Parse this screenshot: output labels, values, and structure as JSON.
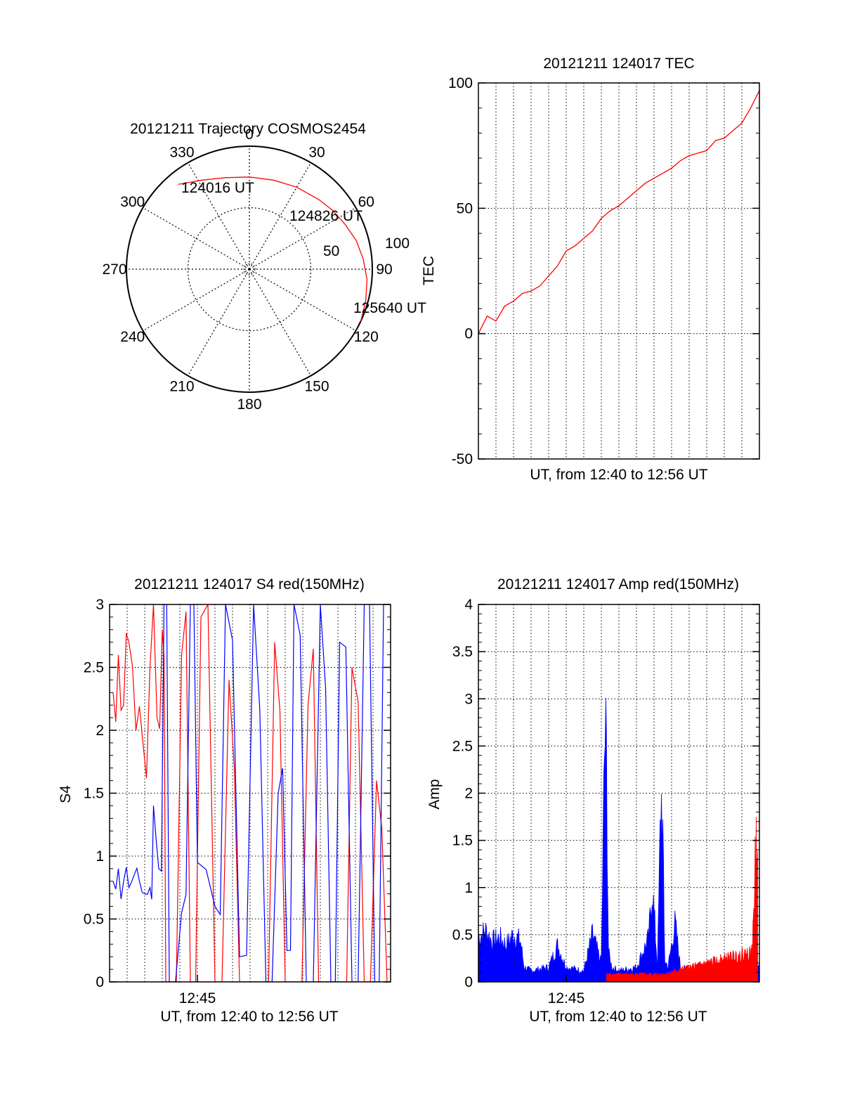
{
  "colors": {
    "red": "#ff0000",
    "blue": "#0000ff",
    "axis": "#000000",
    "grid": "#000000"
  },
  "polar": {
    "title": "20121211 Trajectory COSMOS2454",
    "azimuth_labels": [
      "0",
      "30",
      "60",
      "90",
      "120",
      "150",
      "180",
      "210",
      "240",
      "270",
      "300",
      "330"
    ],
    "elevation_labels": [
      "50",
      "100"
    ],
    "start_label": "124016 UT",
    "mid_label": "124826 UT",
    "end_label": "125640 UT"
  },
  "chart_data": [
    {
      "id": "trajectory",
      "type": "scatter",
      "title": "20121211 Trajectory COSMOS2454",
      "projection": "polar",
      "azimuth_ticks": [
        0,
        30,
        60,
        90,
        120,
        150,
        180,
        210,
        240,
        270,
        300,
        330
      ],
      "radius_ticks": [
        50,
        100
      ],
      "rlim": [
        0,
        100
      ],
      "grid": true,
      "series": [
        {
          "color": "#ff0000",
          "points": [
            [
              320,
              90
            ],
            [
              332,
              82
            ],
            [
              345,
              77
            ],
            [
              0,
              75
            ],
            [
              15,
              75
            ],
            [
              30,
              77
            ],
            [
              45,
              80
            ],
            [
              55,
              83
            ],
            [
              65,
              86
            ],
            [
              75,
              90
            ],
            [
              85,
              93
            ],
            [
              95,
              96
            ],
            [
              105,
              98
            ],
            [
              115,
              100
            ]
          ]
        }
      ]
    },
    {
      "id": "tec",
      "type": "line",
      "title": "20121211 124017 TEC",
      "xlabel": "UT, from 12:40 to 12:56 UT",
      "ylabel": "TEC",
      "xlim": [
        0,
        16
      ],
      "ylim": [
        -50,
        100
      ],
      "yticks": [
        -50,
        0,
        50,
        100
      ],
      "xtick_labels": [],
      "x_gridlines": 16,
      "grid": true,
      "series": [
        {
          "color": "#ff0000",
          "x": [
            0,
            0.5,
            1,
            1.5,
            2,
            2.5,
            3,
            3.5,
            4,
            4.5,
            5,
            5.5,
            6,
            6.5,
            7,
            7.5,
            8,
            8.5,
            9,
            9.5,
            10,
            10.5,
            11,
            11.5,
            12,
            12.5,
            13,
            13.5,
            14,
            14.5,
            15,
            15.5,
            16
          ],
          "y": [
            0,
            7,
            5,
            11,
            13,
            16,
            17,
            19,
            23,
            27,
            33,
            35,
            38,
            41,
            46,
            49,
            51,
            54,
            57,
            60,
            62,
            64,
            66,
            69,
            71,
            72,
            73,
            77,
            78,
            81,
            84,
            90,
            97
          ]
        }
      ]
    },
    {
      "id": "s4",
      "type": "line",
      "title": "20121211 124017 S4 red(150MHz)",
      "xlabel": "UT, from 12:40 to 12:56 UT",
      "ylabel": "S4",
      "xlim": [
        0,
        16
      ],
      "ylim": [
        0,
        3
      ],
      "yticks": [
        0,
        0.5,
        1,
        1.5,
        2,
        2.5,
        3
      ],
      "ytick_labels": [
        "0",
        "0.5",
        "1",
        "1.5",
        "2",
        "2.5",
        "3"
      ],
      "xtick_labels": [
        {
          "x": 5,
          "label": "12:45"
        }
      ],
      "x_gridlines": 16,
      "grid": true,
      "series": [
        {
          "color": "#ff0000",
          "x": [
            0.2,
            0.5,
            0.8,
            1.1,
            1.5,
            1.9,
            2.3,
            2.7,
            3.0,
            3.2,
            3.5,
            4.1,
            4.6,
            5.2,
            6.0,
            6.8,
            7.4,
            8.1,
            8.7,
            9.4,
            10.0,
            10.6,
            11.3,
            11.9,
            12.5,
            13.2,
            13.8,
            14.5,
            15.2,
            15.8
          ],
          "y": [
            2.3,
            2.6,
            2.2,
            2.7,
            2.0,
            1.9,
            2.5,
            2.1,
            2.8,
            0.0,
            0.0,
            2.6,
            0.0,
            2.9,
            0.0,
            2.4,
            0.0,
            0.0,
            0.0,
            2.7,
            0.0,
            0.0,
            2.2,
            0.0,
            0.0,
            0.0,
            2.5,
            0.0,
            1.6,
            0.0
          ]
        },
        {
          "color": "#0000ff",
          "x": [
            0.2,
            0.5,
            0.8,
            1.1,
            1.4,
            1.7,
            2.0,
            2.3,
            2.5,
            2.8,
            3.1,
            3.4,
            4.1,
            4.6,
            5.0,
            6.0,
            6.6,
            7.4,
            8.2,
            8.9,
            9.6,
            10.1,
            10.5,
            11.2,
            12.0,
            12.6,
            13.1,
            13.8,
            14.5,
            15.1,
            15.6
          ],
          "y": [
            0.8,
            0.9,
            0.8,
            0.75,
            0.85,
            0.8,
            0.7,
            0.75,
            1.4,
            0.9,
            3.0,
            0.0,
            0.55,
            3.0,
            0.95,
            0.6,
            3.0,
            0.2,
            3.0,
            0.0,
            1.5,
            0.25,
            3.0,
            0.0,
            3.0,
            0.0,
            2.7,
            0.0,
            3.0,
            0.0,
            3.0
          ]
        }
      ]
    },
    {
      "id": "amp",
      "type": "area",
      "title": "20121211 124017 Amp red(150MHz)",
      "xlabel": "UT, from 12:40 to 12:56 UT",
      "ylabel": "Amp",
      "xlim": [
        0,
        16
      ],
      "ylim": [
        0,
        4
      ],
      "yticks": [
        0,
        0.5,
        1,
        1.5,
        2,
        2.5,
        3,
        3.5,
        4
      ],
      "ytick_labels": [
        "0",
        "0.5",
        "1",
        "1.5",
        "2",
        "2.5",
        "3",
        "3.5",
        "4"
      ],
      "xtick_labels": [
        {
          "x": 5,
          "label": "12:45"
        }
      ],
      "x_gridlines": 16,
      "grid": true,
      "series": [
        {
          "color": "#0000ff",
          "x": [
            0,
            0.4,
            0.8,
            1.2,
            1.6,
            2.0,
            2.4,
            2.6,
            3.0,
            4.0,
            4.5,
            5.0,
            6.0,
            6.5,
            6.8,
            7.0,
            7.2,
            7.3,
            7.4,
            7.6,
            8.0,
            9.0,
            9.7,
            9.9,
            10.2,
            10.4,
            10.5,
            10.6,
            10.8,
            11.2,
            11.5,
            12.0,
            13.0,
            14.0,
            15.0,
            15.5,
            16.0
          ],
          "y": [
            0.6,
            0.7,
            0.55,
            0.6,
            0.5,
            0.65,
            0.55,
            0.2,
            0.15,
            0.2,
            0.5,
            0.2,
            0.15,
            0.65,
            0.4,
            0.25,
            3.4,
            3.0,
            0.4,
            0.2,
            0.15,
            0.2,
            0.6,
            1.3,
            0.2,
            2.6,
            2.0,
            0.3,
            0.2,
            0.8,
            0.2,
            0.15,
            0.2,
            0.15,
            0.2,
            0.15,
            0.2
          ]
        },
        {
          "color": "#ff0000",
          "x": [
            7.3,
            10.5,
            15.6,
            15.8,
            15.9
          ],
          "y": [
            0.1,
            0.1,
            0.4,
            1.9,
            2.2
          ]
        }
      ]
    }
  ]
}
